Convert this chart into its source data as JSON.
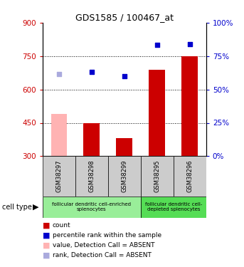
{
  "title": "GDS1585 / 100467_at",
  "samples": [
    "GSM38297",
    "GSM38298",
    "GSM38299",
    "GSM38295",
    "GSM38296"
  ],
  "bar_values": [
    490,
    450,
    380,
    690,
    750
  ],
  "bar_absent": [
    true,
    false,
    false,
    false,
    false
  ],
  "rank_values": [
    670,
    680,
    660,
    800,
    805
  ],
  "rank_absent": [
    true,
    false,
    false,
    false,
    false
  ],
  "ylim_left": [
    300,
    900
  ],
  "ylim_right": [
    0,
    100
  ],
  "yticks_left": [
    300,
    450,
    600,
    750,
    900
  ],
  "yticks_right": [
    0,
    25,
    50,
    75,
    100
  ],
  "bar_color_normal": "#cc0000",
  "bar_color_absent": "#ffb3b3",
  "rank_color_normal": "#0000cc",
  "rank_color_absent": "#aaaadd",
  "grid_color": "black",
  "grid_yticks": [
    450,
    600,
    750
  ],
  "cell_type_groups": [
    {
      "label": "follicular dendritic cell-enriched\nsplenocytes",
      "samples": [
        0,
        1,
        2
      ],
      "color": "#99ee99"
    },
    {
      "label": "follicular dendritic cell-\ndepleted splenocytes",
      "samples": [
        3,
        4
      ],
      "color": "#55dd55"
    }
  ],
  "legend_items": [
    {
      "label": "count",
      "color": "#cc0000"
    },
    {
      "label": "percentile rank within the sample",
      "color": "#0000cc"
    },
    {
      "label": "value, Detection Call = ABSENT",
      "color": "#ffb3b3"
    },
    {
      "label": "rank, Detection Call = ABSENT",
      "color": "#aaaadd"
    }
  ],
  "cell_type_label": "cell type",
  "axis_color_left": "#cc0000",
  "axis_color_right": "#0000cc",
  "sample_box_color": "#cccccc",
  "bar_width": 0.5
}
